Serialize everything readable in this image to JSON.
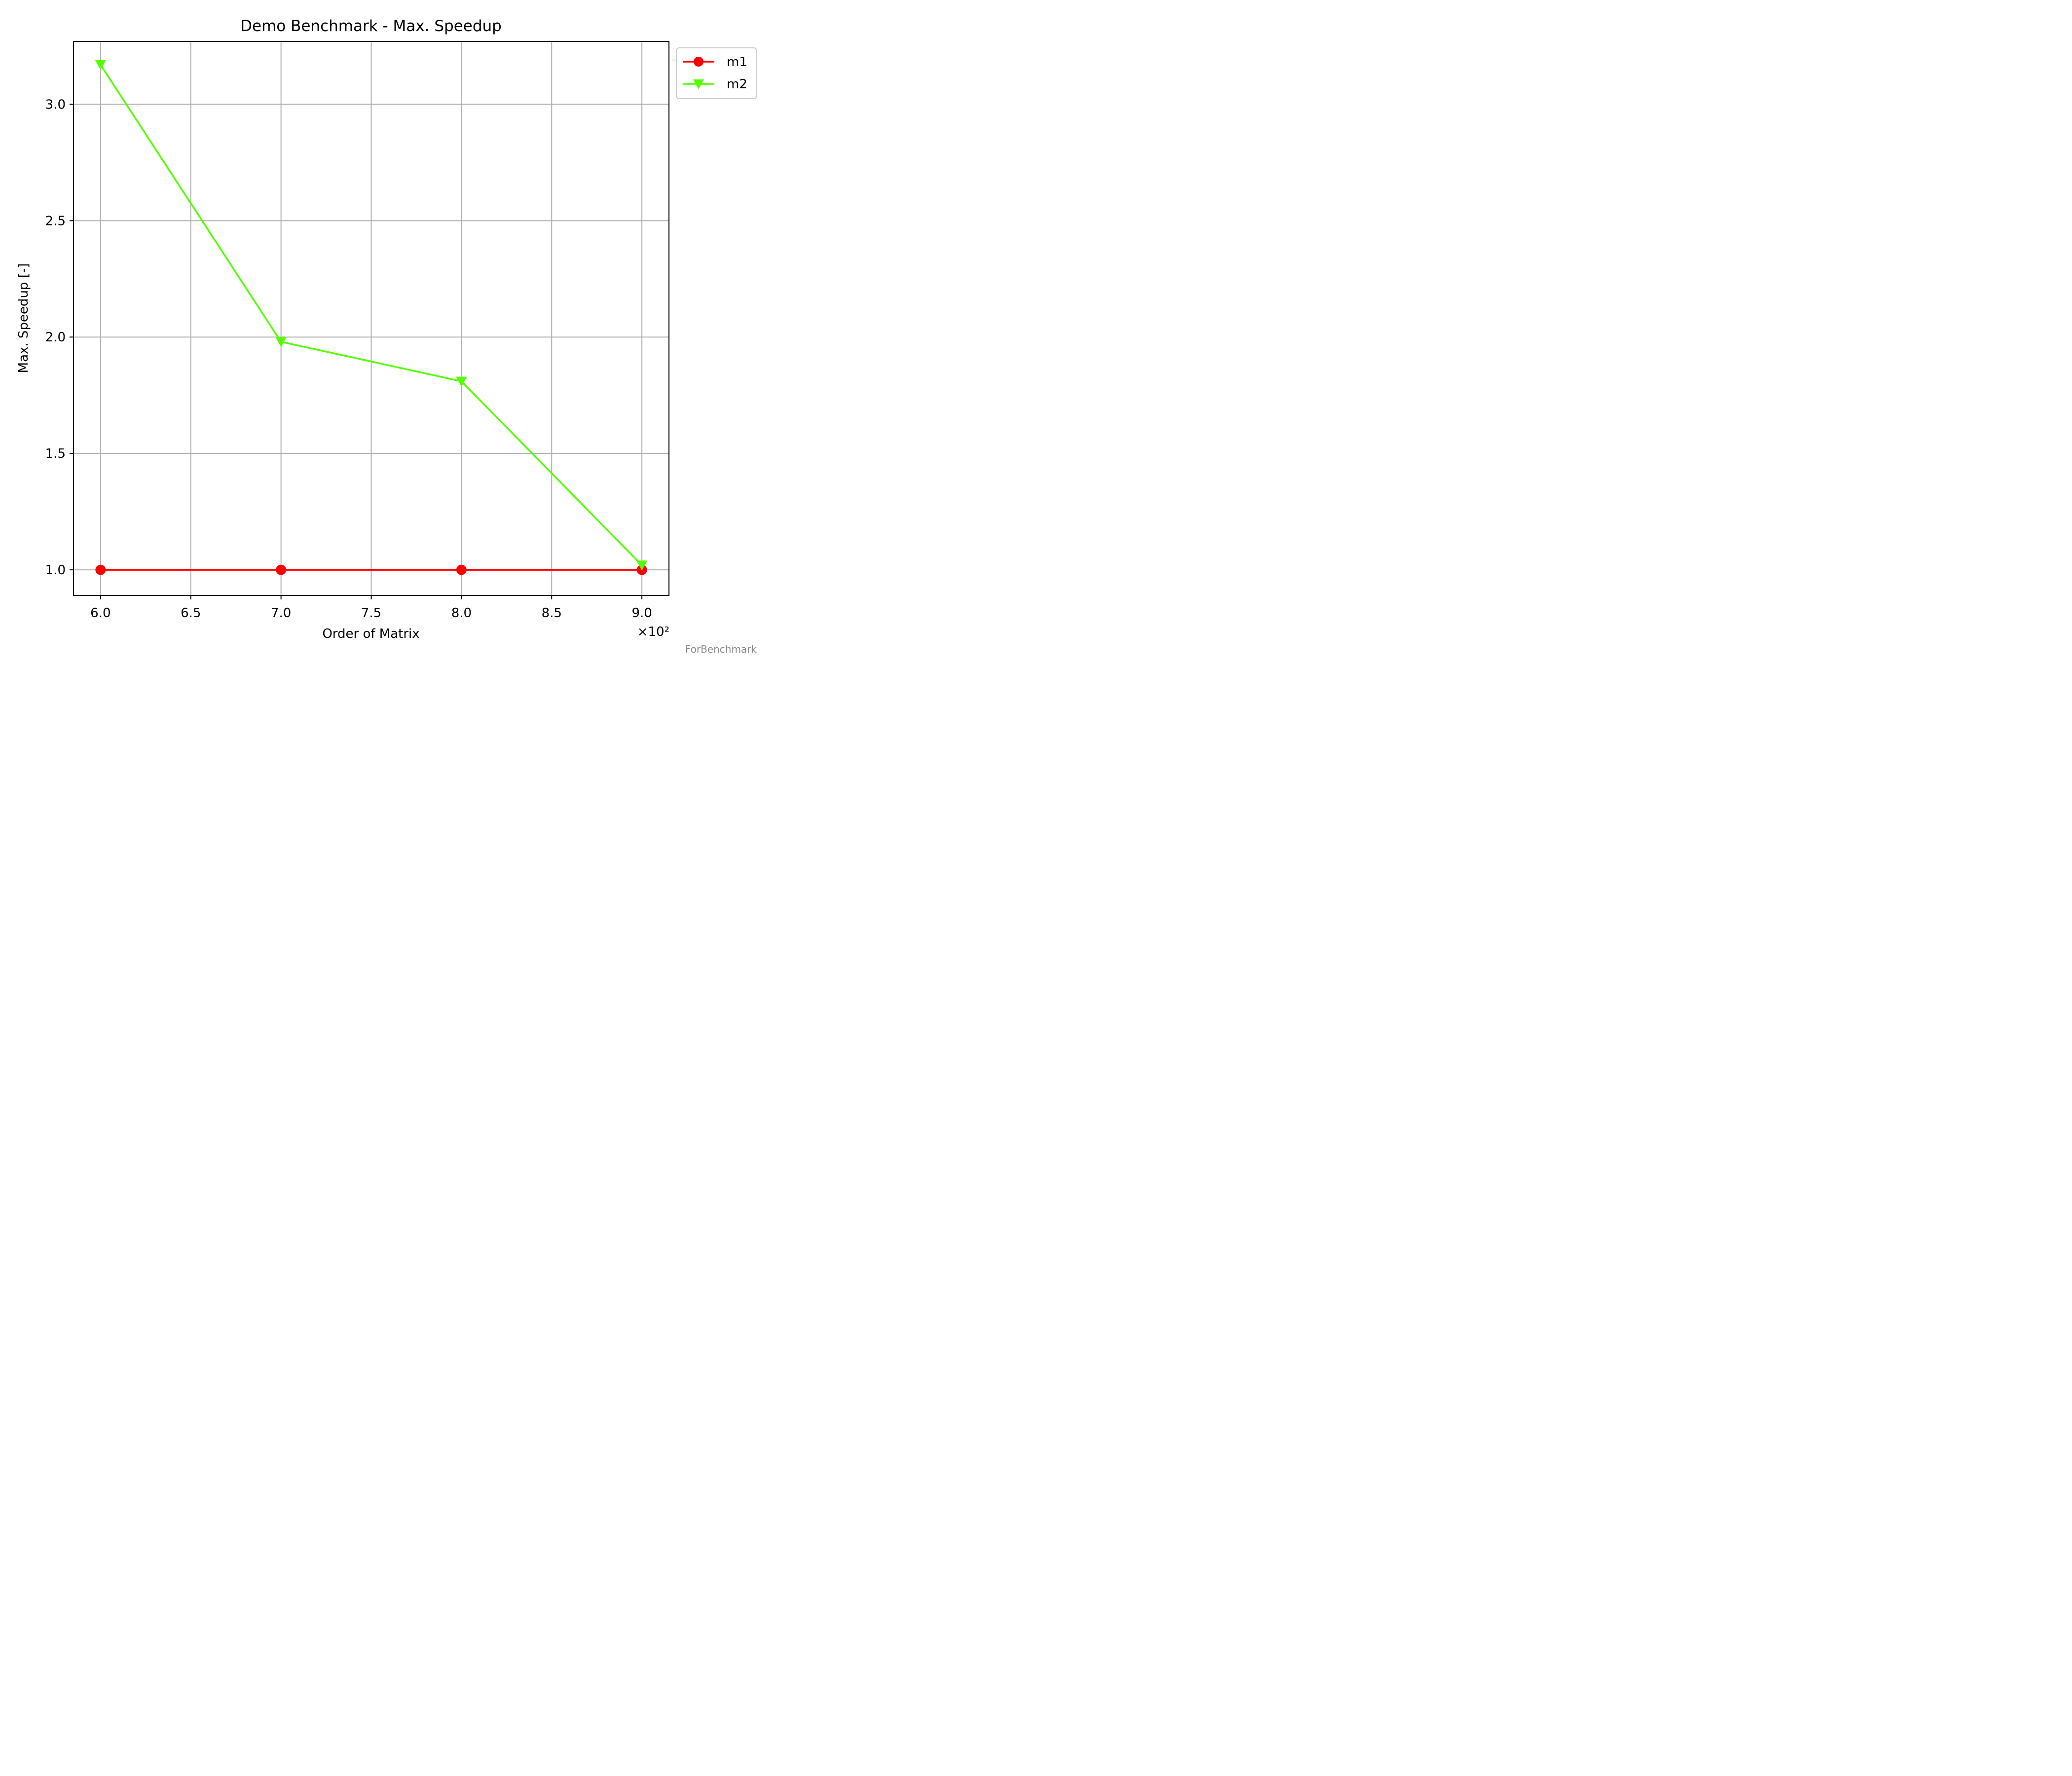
{
  "chart_data": {
    "type": "line",
    "title": "Demo Benchmark - Max. Speedup",
    "xlabel": "Order of Matrix",
    "ylabel": "Max. Speedup [-]",
    "x_scale_label": "×10²",
    "x": [
      6.0,
      7.0,
      8.0,
      9.0
    ],
    "x_ticks": [
      "6.0",
      "6.5",
      "7.0",
      "7.5",
      "8.0",
      "8.5",
      "9.0"
    ],
    "y_ticks": [
      "1.0",
      "1.5",
      "2.0",
      "2.5",
      "3.0"
    ],
    "xlim": [
      5.85,
      9.15
    ],
    "ylim": [
      0.89,
      3.27
    ],
    "grid": true,
    "legend_position": "outside-top-right",
    "series": [
      {
        "name": "m1",
        "values": [
          1.0,
          1.0,
          1.0,
          1.0
        ],
        "color": "#ff0000",
        "marker": "circle"
      },
      {
        "name": "m2",
        "values": [
          3.17,
          1.98,
          1.81,
          1.02
        ],
        "color": "#55ff00",
        "marker": "triangle-down"
      }
    ]
  },
  "watermark": "ForBenchmark"
}
